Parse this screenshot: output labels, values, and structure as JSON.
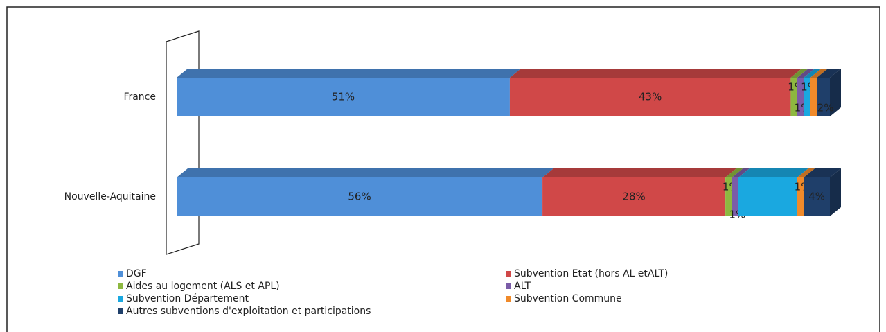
{
  "chart_data": {
    "type": "stacked-bar-horizontal",
    "categories": [
      "France",
      "Nouvelle-Aquitaine"
    ],
    "xlim": [
      0,
      100
    ],
    "series": [
      {
        "name": "DGF",
        "color": "#4f8fd8",
        "values": [
          51,
          56
        ],
        "value_labels": [
          "51%",
          "56%"
        ]
      },
      {
        "name": "Subvention Etat (hors AL etALT)",
        "color": "#d04848",
        "values": [
          43,
          28
        ],
        "value_labels": [
          "43%",
          "28%"
        ]
      },
      {
        "name": "Aides au logement (ALS et APL)",
        "color": "#8db840",
        "values": [
          1,
          1
        ],
        "value_labels": [
          "1%",
          "1%"
        ]
      },
      {
        "name": "ALT",
        "color": "#7b5ca8",
        "values": [
          1,
          1
        ],
        "value_labels": [
          "1%",
          "1%"
        ]
      },
      {
        "name": "Subvention Département",
        "color": "#1aa8e0",
        "values": [
          1,
          9
        ],
        "value_labels": [
          "1%",
          null
        ]
      },
      {
        "name": "Subvention Commune",
        "color": "#f08a2a",
        "values": [
          1,
          1
        ],
        "value_labels": [
          null,
          "1%"
        ]
      },
      {
        "name": "Autres subventions d'exploitation et participations",
        "color": "#1f3f6a",
        "values": [
          2,
          4
        ],
        "value_labels": [
          "2%",
          "4%"
        ]
      }
    ]
  }
}
